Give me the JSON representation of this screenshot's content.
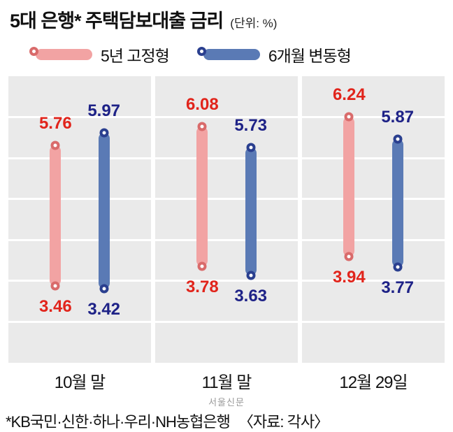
{
  "header": {
    "title": "5대 은행* 주택담보대출 금리",
    "unit": "(단위: %)"
  },
  "legend": {
    "items": [
      {
        "label": "5년 고정형"
      },
      {
        "label": "6개월 변동형"
      }
    ]
  },
  "chart_data": {
    "type": "range-bar",
    "title": "5대 은행* 주택담보대출 금리",
    "unit": "%",
    "categories": [
      "10월 말",
      "11월 말",
      "12월 29일"
    ],
    "series": [
      {
        "name": "5년 고정형",
        "key": "fixed",
        "ranges": [
          [
            3.46,
            5.76
          ],
          [
            3.78,
            6.08
          ],
          [
            3.94,
            6.24
          ]
        ]
      },
      {
        "name": "6개월 변동형",
        "key": "variable",
        "ranges": [
          [
            3.42,
            5.97
          ],
          [
            3.63,
            5.73
          ],
          [
            3.77,
            5.87
          ]
        ]
      }
    ],
    "ylim": [
      2.2,
      6.9
    ],
    "grid_rows": 7,
    "legend_position": "top",
    "grid": true
  },
  "colors": {
    "fixed_bar": "#f2a3a3",
    "fixed_ring": "#d96b6b",
    "fixed_text": "#e1241b",
    "variable_bar": "#5a7ab5",
    "variable_ring": "#2a3f8f",
    "variable_text": "#1e2287",
    "panel_bg": "#eaeaea",
    "grid": "#ffffff"
  },
  "footer": {
    "watermark": "서울신문",
    "note": "*KB국민·신한·하나·우리·NH농협은행",
    "source": "〈자료: 각사〉"
  }
}
